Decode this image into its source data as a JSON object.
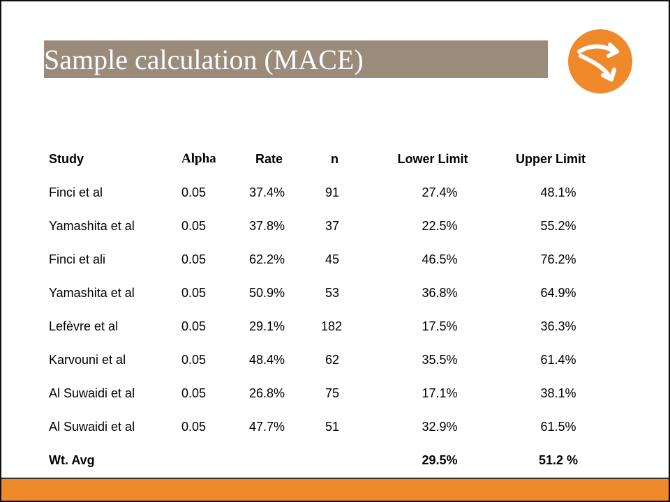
{
  "title": "Sample calculation (MACE)",
  "colors": {
    "title_bar": "#9b8b7a",
    "accent": "#f0882c",
    "logo": "#f0882c"
  },
  "logo_icon": "curved-arrows-logo",
  "table": {
    "headers": {
      "study": "Study",
      "alpha": "Alpha",
      "rate": "Rate",
      "n": "n",
      "lower": "Lower Limit",
      "upper": "Upper Limit"
    },
    "rows": [
      {
        "study": "Finci et al",
        "alpha": "0.05",
        "rate": "37.4%",
        "n": "91",
        "lower": "27.4%",
        "upper": "48.1%"
      },
      {
        "study": "Yamashita et al",
        "alpha": "0.05",
        "rate": "37.8%",
        "n": "37",
        "lower": "22.5%",
        "upper": "55.2%"
      },
      {
        "study": "Finci et ali",
        "alpha": "0.05",
        "rate": "62.2%",
        "n": "45",
        "lower": "46.5%",
        "upper": "76.2%"
      },
      {
        "study": "Yamashita et al",
        "alpha": "0.05",
        "rate": "50.9%",
        "n": "53",
        "lower": "36.8%",
        "upper": "64.9%"
      },
      {
        "study": "Lefèvre et al",
        "alpha": "0.05",
        "rate": "29.1%",
        "n": "182",
        "lower": "17.5%",
        "upper": "36.3%"
      },
      {
        "study": "Karvouni et al",
        "alpha": "0.05",
        "rate": "48.4%",
        "n": "62",
        "lower": "35.5%",
        "upper": "61.4%"
      },
      {
        "study": "Al Suwaidi et al",
        "alpha": "0.05",
        "rate": "26.8%",
        "n": "75",
        "lower": "17.1%",
        "upper": "38.1%"
      },
      {
        "study": "Al Suwaidi et al",
        "alpha": "0.05",
        "rate": "47.7%",
        "n": "51",
        "lower": "32.9%",
        "upper": "61.5%"
      }
    ],
    "weighted_average": {
      "label": "Wt. Avg",
      "lower": "29.5%",
      "upper": "51.2 %"
    }
  }
}
